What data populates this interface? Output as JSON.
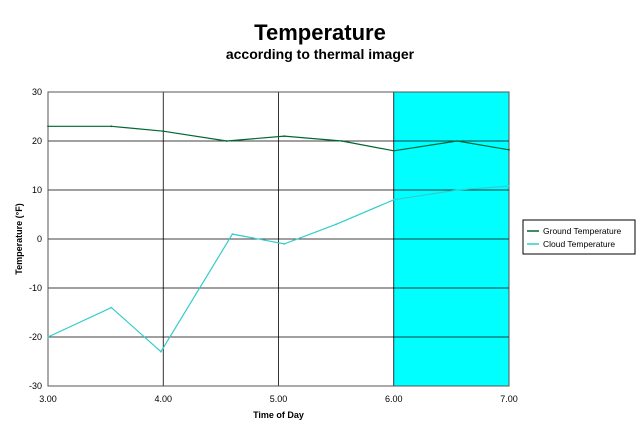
{
  "chart_data": {
    "type": "line",
    "title": "Temperature",
    "subtitle": "according to thermal imager",
    "xlabel": "Time of Day",
    "ylabel": "Temperature (°F)",
    "xlim": [
      3.0,
      7.0
    ],
    "ylim": [
      -30,
      30
    ],
    "x_ticks": [
      "3.00",
      "4.00",
      "5.00",
      "6.00",
      "7.00"
    ],
    "y_ticks": [
      "30",
      "20",
      "10",
      "0",
      "-10",
      "-20",
      "-30"
    ],
    "grid": true,
    "legend_position": "right",
    "highlight_band": {
      "x_start": 6.0,
      "x_end": 7.0,
      "color": "#00ffff"
    },
    "series": [
      {
        "name": "Ground Temperature",
        "color": "#006633",
        "x": [
          3.0,
          3.55,
          4.0,
          4.55,
          5.05,
          5.55,
          6.0,
          6.55,
          7.0
        ],
        "values": [
          23,
          23,
          22,
          20,
          21,
          20,
          18,
          20,
          18.2
        ]
      },
      {
        "name": "Cloud Temperature",
        "color": "#33cccc",
        "x": [
          3.0,
          3.55,
          3.98,
          4.6,
          5.05,
          5.5,
          6.0,
          6.55,
          7.0
        ],
        "values": [
          -20,
          -14,
          -23,
          1,
          -1,
          3,
          8,
          10,
          10.8
        ]
      }
    ]
  }
}
